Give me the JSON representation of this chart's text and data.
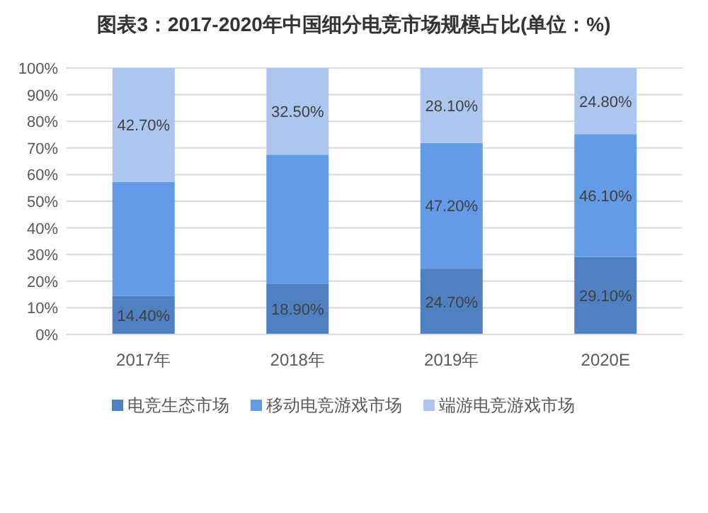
{
  "chart_data": {
    "type": "bar",
    "stacked": true,
    "title": "图表3：2017-2020年中国细分电竞市场规模占比(单位：%)",
    "categories": [
      "2017年",
      "2018年",
      "2019年",
      "2020E"
    ],
    "series": [
      {
        "name": "电竞生态市场",
        "color": "#4f81c2",
        "values": [
          14.4,
          18.9,
          24.7,
          29.1
        ],
        "value_labels": [
          "14.40%",
          "18.90%",
          "24.70%",
          "29.10%"
        ]
      },
      {
        "name": "移动电竞游戏市场",
        "color": "#639be6",
        "values": [
          42.9,
          48.6,
          47.2,
          46.1
        ],
        "value_labels": [
          null,
          null,
          "47.20%",
          "46.10%"
        ]
      },
      {
        "name": "端游电竞游戏市场",
        "color": "#adc6ef",
        "values": [
          42.7,
          32.5,
          28.1,
          24.8
        ],
        "value_labels": [
          "42.70%",
          "32.50%",
          "28.10%",
          "24.80%"
        ]
      }
    ],
    "ylim": [
      0,
      100
    ],
    "yticks": [
      {
        "value": 0,
        "label": "0%"
      },
      {
        "value": 10,
        "label": "10%"
      },
      {
        "value": 20,
        "label": "20%"
      },
      {
        "value": 30,
        "label": "30%"
      },
      {
        "value": 40,
        "label": "40%"
      },
      {
        "value": 50,
        "label": "50%"
      },
      {
        "value": 60,
        "label": "60%"
      },
      {
        "value": 70,
        "label": "70%"
      },
      {
        "value": 80,
        "label": "80%"
      },
      {
        "value": 90,
        "label": "90%"
      },
      {
        "value": 100,
        "label": "100%"
      }
    ],
    "grid": "y",
    "legend": "bottom"
  }
}
